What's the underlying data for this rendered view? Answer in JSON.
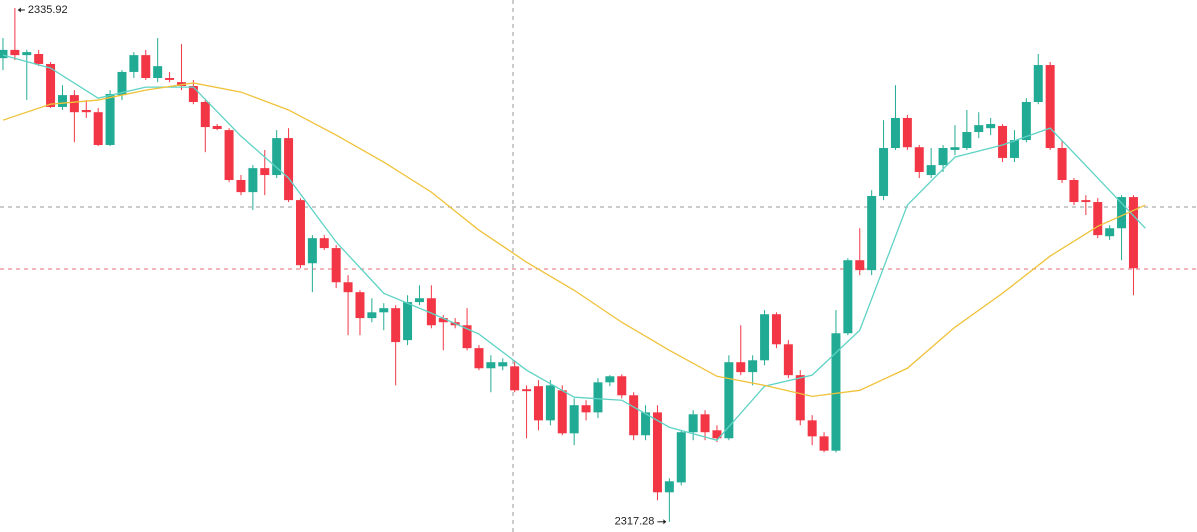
{
  "chart_data": {
    "type": "candlestick",
    "up_color": "#22ab94",
    "down_color": "#f23645",
    "xlim": [
      -0.25,
      100.34
    ],
    "ylim": [
      2316.91,
      2336.21
    ],
    "candles": [
      [
        2334.1,
        2334.83,
        2333.67,
        2334.4
      ],
      [
        2334.4,
        2335.92,
        2334.03,
        2334.21
      ],
      [
        2334.21,
        2334.4,
        2332.58,
        2334.32
      ],
      [
        2334.25,
        2334.4,
        2333.81,
        2333.89
      ],
      [
        2333.89,
        2333.96,
        2332.29,
        2332.33
      ],
      [
        2332.33,
        2333.12,
        2332.22,
        2332.76
      ],
      [
        2332.76,
        2332.94,
        2331.05,
        2332.14
      ],
      [
        2332.22,
        2332.58,
        2331.93,
        2332.14
      ],
      [
        2332.14,
        2332.29,
        2330.91,
        2330.95
      ],
      [
        2330.95,
        2332.94,
        2330.91,
        2332.8
      ],
      [
        2332.76,
        2333.67,
        2332.58,
        2333.6
      ],
      [
        2333.6,
        2334.32,
        2333.38,
        2334.21
      ],
      [
        2334.21,
        2334.4,
        2333.31,
        2333.38
      ],
      [
        2333.38,
        2334.83,
        2333.23,
        2333.81
      ],
      [
        2333.38,
        2333.6,
        2333.23,
        2333.31
      ],
      [
        2333.23,
        2334.61,
        2332.94,
        2333.09
      ],
      [
        2333.09,
        2333.31,
        2332.43,
        2332.51
      ],
      [
        2332.51,
        2332.58,
        2330.69,
        2331.6
      ],
      [
        2331.64,
        2331.71,
        2331.49,
        2331.53
      ],
      [
        2331.49,
        2331.56,
        2329.6,
        2329.68
      ],
      [
        2329.68,
        2329.86,
        2329.13,
        2329.24
      ],
      [
        2329.24,
        2330.22,
        2328.59,
        2330.11
      ],
      [
        2330.11,
        2330.77,
        2329.13,
        2329.86
      ],
      [
        2329.86,
        2331.49,
        2329.75,
        2331.2
      ],
      [
        2331.2,
        2331.56,
        2328.88,
        2328.95
      ],
      [
        2328.95,
        2329.02,
        2326.48,
        2326.59
      ],
      [
        2326.66,
        2327.68,
        2325.61,
        2327.57
      ],
      [
        2327.57,
        2327.68,
        2327.14,
        2327.21
      ],
      [
        2327.21,
        2327.32,
        2325.76,
        2325.97
      ],
      [
        2325.97,
        2326.23,
        2324.05,
        2325.61
      ],
      [
        2325.61,
        2325.68,
        2324.05,
        2324.67
      ],
      [
        2324.67,
        2325.39,
        2324.52,
        2324.88
      ],
      [
        2324.88,
        2325.21,
        2324.23,
        2325.03
      ],
      [
        2325.03,
        2325.14,
        2322.23,
        2323.8
      ],
      [
        2323.87,
        2325.5,
        2323.69,
        2325.25
      ],
      [
        2325.25,
        2325.86,
        2325.14,
        2325.39
      ],
      [
        2325.39,
        2325.86,
        2324.3,
        2324.41
      ],
      [
        2324.67,
        2324.78,
        2323.5,
        2324.52
      ],
      [
        2324.52,
        2324.67,
        2324.3,
        2324.41
      ],
      [
        2324.41,
        2325.03,
        2323.5,
        2323.58
      ],
      [
        2323.58,
        2323.69,
        2322.78,
        2322.85
      ],
      [
        2322.85,
        2323.32,
        2321.98,
        2323.07
      ],
      [
        2322.92,
        2323.21,
        2322.78,
        2323.07
      ],
      [
        2322.92,
        2323.14,
        2321.98,
        2322.05
      ],
      [
        2322.09,
        2322.23,
        2320.31,
        2322.02
      ],
      [
        2322.2,
        2322.42,
        2320.6,
        2320.96
      ],
      [
        2320.96,
        2322.42,
        2320.78,
        2322.23
      ],
      [
        2322.05,
        2322.23,
        2320.42,
        2320.49
      ],
      [
        2320.49,
        2321.76,
        2320.06,
        2321.51
      ],
      [
        2321.51,
        2321.69,
        2320.96,
        2321.25
      ],
      [
        2321.25,
        2322.49,
        2321.04,
        2322.34
      ],
      [
        2322.34,
        2322.6,
        2322.2,
        2322.56
      ],
      [
        2322.56,
        2322.63,
        2321.76,
        2321.87
      ],
      [
        2321.87,
        2321.98,
        2320.24,
        2320.42
      ],
      [
        2320.42,
        2321.51,
        2320.24,
        2321.25
      ],
      [
        2321.25,
        2321.51,
        2318.06,
        2318.35
      ],
      [
        2318.35,
        2318.86,
        2317.28,
        2318.75
      ],
      [
        2318.71,
        2320.6,
        2318.6,
        2320.53
      ],
      [
        2320.53,
        2321.33,
        2320.24,
        2321.18
      ],
      [
        2321.18,
        2321.33,
        2320.24,
        2320.53
      ],
      [
        2320.6,
        2320.78,
        2320.17,
        2320.31
      ],
      [
        2320.31,
        2323.32,
        2320.24,
        2323.07
      ],
      [
        2323.07,
        2324.41,
        2322.6,
        2322.71
      ],
      [
        2322.71,
        2323.32,
        2322.23,
        2323.14
      ],
      [
        2323.14,
        2324.96,
        2322.96,
        2324.81
      ],
      [
        2324.81,
        2324.88,
        2323.58,
        2323.72
      ],
      [
        2323.72,
        2323.87,
        2322.49,
        2322.6
      ],
      [
        2322.6,
        2322.78,
        2320.78,
        2320.96
      ],
      [
        2320.96,
        2321.15,
        2320.06,
        2320.38
      ],
      [
        2320.38,
        2320.53,
        2319.8,
        2319.86
      ],
      [
        2319.86,
        2324.96,
        2319.8,
        2324.12
      ],
      [
        2324.12,
        2326.84,
        2324.05,
        2326.77
      ],
      [
        2326.77,
        2327.93,
        2326.23,
        2326.41
      ],
      [
        2326.41,
        2329.31,
        2326.23,
        2329.1
      ],
      [
        2329.1,
        2331.85,
        2328.95,
        2330.84
      ],
      [
        2330.84,
        2333.12,
        2330.77,
        2331.93
      ],
      [
        2331.93,
        2332.04,
        2330.77,
        2330.87
      ],
      [
        2330.87,
        2330.95,
        2329.75,
        2329.97
      ],
      [
        2329.86,
        2330.84,
        2329.75,
        2330.22
      ],
      [
        2330.22,
        2330.95,
        2329.97,
        2330.84
      ],
      [
        2330.77,
        2331.67,
        2330.58,
        2330.87
      ],
      [
        2330.84,
        2332.22,
        2330.77,
        2331.42
      ],
      [
        2331.42,
        2332.14,
        2331.2,
        2331.67
      ],
      [
        2331.56,
        2331.93,
        2331.31,
        2331.71
      ],
      [
        2331.64,
        2331.71,
        2330.33,
        2330.48
      ],
      [
        2330.48,
        2331.49,
        2330.33,
        2331.13
      ],
      [
        2331.13,
        2332.65,
        2331.05,
        2332.51
      ],
      [
        2332.51,
        2334.25,
        2332.43,
        2333.85
      ],
      [
        2333.85,
        2333.96,
        2330.77,
        2330.84
      ],
      [
        2330.84,
        2331.13,
        2329.57,
        2329.68
      ],
      [
        2329.68,
        2329.75,
        2328.77,
        2328.88
      ],
      [
        2328.95,
        2329.13,
        2328.41,
        2328.88
      ],
      [
        2328.88,
        2329.02,
        2327.57,
        2327.68
      ],
      [
        2327.64,
        2328.04,
        2327.5,
        2327.93
      ],
      [
        2327.93,
        2329.13,
        2326.77,
        2329.06
      ],
      [
        2329.06,
        2329.13,
        2325.5,
        2326.48
      ]
    ],
    "lines": [
      {
        "color": "#5fd3c5",
        "x": [
          0,
          4,
          8,
          12,
          16,
          20,
          24,
          28,
          32,
          36,
          40,
          44,
          48,
          52,
          56,
          60,
          64,
          68,
          72,
          76,
          80,
          84,
          88,
          92,
          96
        ],
        "values": [
          2334.21,
          2333.74,
          2332.65,
          2333.05,
          2333.05,
          2331.27,
          2329.75,
          2327.43,
          2325.57,
          2324.85,
          2324.09,
          2322.78,
          2321.8,
          2321.69,
          2320.71,
          2320.24,
          2322.2,
          2322.6,
          2324.23,
          2328.77,
          2330.51,
          2330.95,
          2331.56,
          2329.75,
          2327.93
        ]
      },
      {
        "color": "#f0c23a",
        "x": [
          0,
          4,
          8,
          12,
          16,
          20,
          24,
          28,
          32,
          36,
          40,
          44,
          48,
          52,
          56,
          60,
          64,
          68,
          72,
          76,
          80,
          84,
          88,
          92,
          96
        ],
        "values": [
          2331.85,
          2332.43,
          2332.58,
          2332.94,
          2333.2,
          2332.87,
          2332.22,
          2331.31,
          2330.33,
          2329.24,
          2327.86,
          2326.7,
          2325.68,
          2324.52,
          2323.5,
          2322.56,
          2322.23,
          2321.83,
          2322.05,
          2322.85,
          2324.34,
          2325.57,
          2326.92,
          2328.0,
          2328.77
        ]
      }
    ],
    "crosshair": {
      "x": 42.86,
      "y": 2328.7
    },
    "price_line": {
      "value": 2326.45,
      "color": "#e06c75"
    },
    "max_label": 2335.92,
    "min_label": 2317.28
  }
}
